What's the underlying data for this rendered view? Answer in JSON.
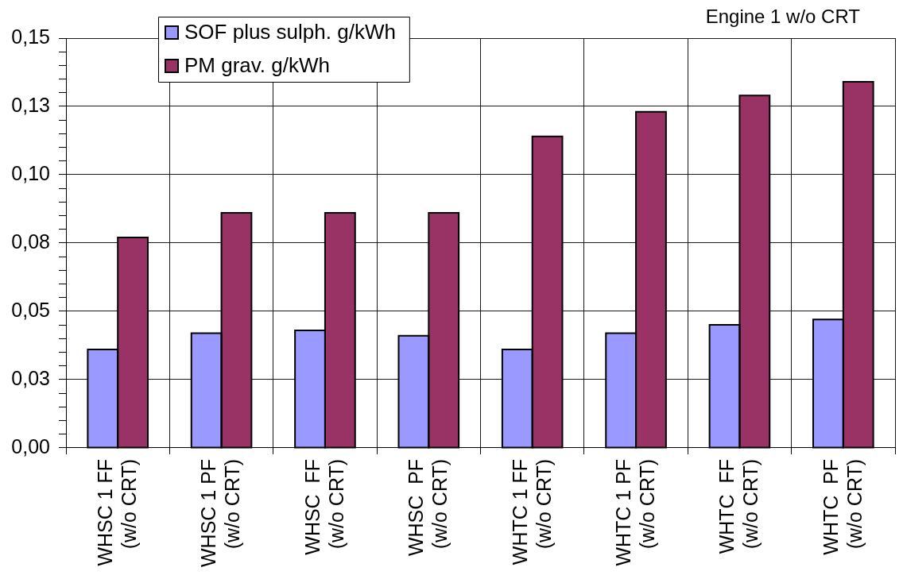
{
  "chart_data": {
    "type": "bar",
    "title": "Engine 1 w/o CRT",
    "categories": [
      "WHSC 1 FF\n(w/o CRT)",
      "WHSC 1 PF\n(w/o CRT)",
      "WHSC  FF\n(w/o CRT)",
      "WHSC  PF\n(w/o CRT)",
      "WHTC 1 FF\n(w/o CRT)",
      "WHTC 1 PF\n(w/o CRT)",
      "WHTC  FF\n(w/o CRT)",
      "WHTC  PF\n(w/o CRT)"
    ],
    "series": [
      {
        "name": "SOF plus sulph. g/kWh",
        "color": "#9999ff",
        "values": [
          0.036,
          0.042,
          0.043,
          0.041,
          0.036,
          0.042,
          0.045,
          0.047
        ]
      },
      {
        "name": "PM grav. g/kWh",
        "color": "#993366",
        "values": [
          0.077,
          0.086,
          0.086,
          0.086,
          0.114,
          0.123,
          0.129,
          0.134
        ]
      }
    ],
    "ylim": [
      0,
      0.15
    ],
    "yticks": [
      {
        "value": 0,
        "label": "0,00"
      },
      {
        "value": 0.005,
        "label": null
      },
      {
        "value": 0.01,
        "label": null
      },
      {
        "value": 0.015,
        "label": null
      },
      {
        "value": 0.02,
        "label": null
      },
      {
        "value": 0.025,
        "label": "0,03"
      },
      {
        "value": 0.03,
        "label": null
      },
      {
        "value": 0.035,
        "label": null
      },
      {
        "value": 0.04,
        "label": null
      },
      {
        "value": 0.045,
        "label": null
      },
      {
        "value": 0.05,
        "label": "0,05"
      },
      {
        "value": 0.055,
        "label": null
      },
      {
        "value": 0.06,
        "label": null
      },
      {
        "value": 0.065,
        "label": null
      },
      {
        "value": 0.07,
        "label": null
      },
      {
        "value": 0.075,
        "label": "0,08"
      },
      {
        "value": 0.08,
        "label": null
      },
      {
        "value": 0.085,
        "label": null
      },
      {
        "value": 0.09,
        "label": null
      },
      {
        "value": 0.095,
        "label": null
      },
      {
        "value": 0.1,
        "label": "0,10"
      },
      {
        "value": 0.105,
        "label": null
      },
      {
        "value": 0.11,
        "label": null
      },
      {
        "value": 0.115,
        "label": null
      },
      {
        "value": 0.12,
        "label": null
      },
      {
        "value": 0.125,
        "label": "0,13"
      },
      {
        "value": 0.13,
        "label": null
      },
      {
        "value": 0.135,
        "label": null
      },
      {
        "value": 0.14,
        "label": null
      },
      {
        "value": 0.145,
        "label": null
      },
      {
        "value": 0.15,
        "label": "0,15"
      }
    ],
    "grid": true,
    "legend": "top left"
  }
}
